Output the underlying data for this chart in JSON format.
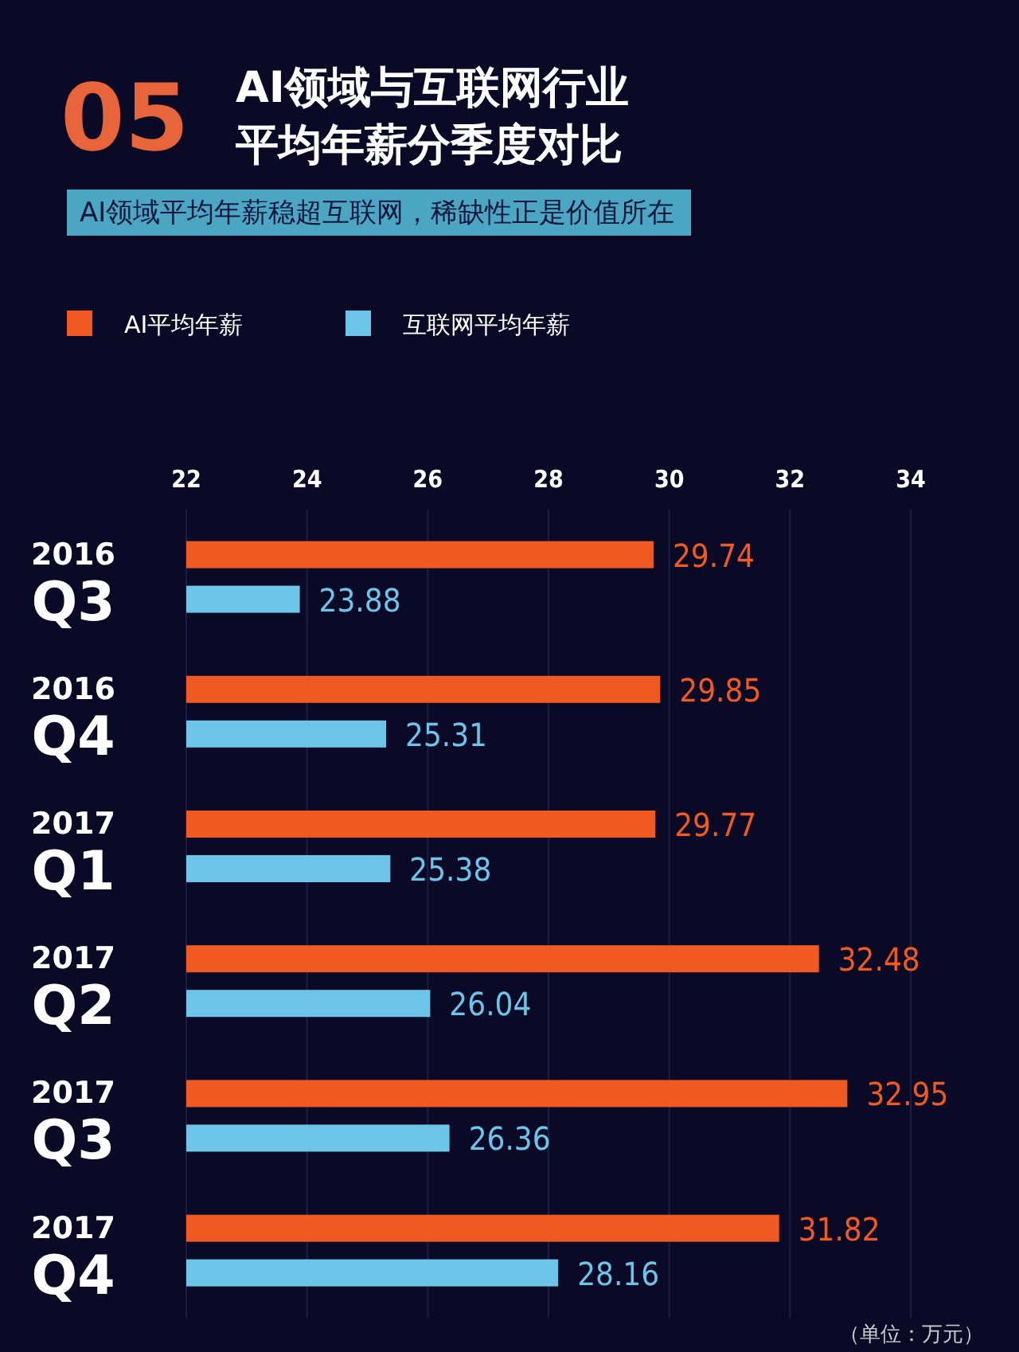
{
  "chart_data": {
    "type": "bar",
    "orientation": "horizontal",
    "title": "AI领域与互联网行业平均年薪分季度对比",
    "subtitle": "AI领域平均年薪稳超互联网，稀缺性正是价值所在",
    "annotations": [
      "05",
      "（单位：万元）"
    ],
    "categories": [
      "2016 Q3",
      "2016 Q4",
      "2017 Q1",
      "2017 Q2",
      "2017 Q3",
      "2017 Q4"
    ],
    "series": [
      {
        "name": "AI平均年薪",
        "color": "#f05a22",
        "values": [
          29.74,
          29.85,
          29.77,
          32.48,
          32.95,
          31.82
        ]
      },
      {
        "name": "互联网平均年薪",
        "color": "#6cc4e8",
        "values": [
          23.88,
          25.31,
          25.38,
          26.04,
          26.36,
          28.16
        ]
      }
    ],
    "xlim": [
      22,
      34
    ],
    "xticks": [
      22,
      24,
      26,
      28,
      30,
      32,
      34
    ],
    "grid": "x",
    "legend": "top left",
    "data_labels": true
  }
}
